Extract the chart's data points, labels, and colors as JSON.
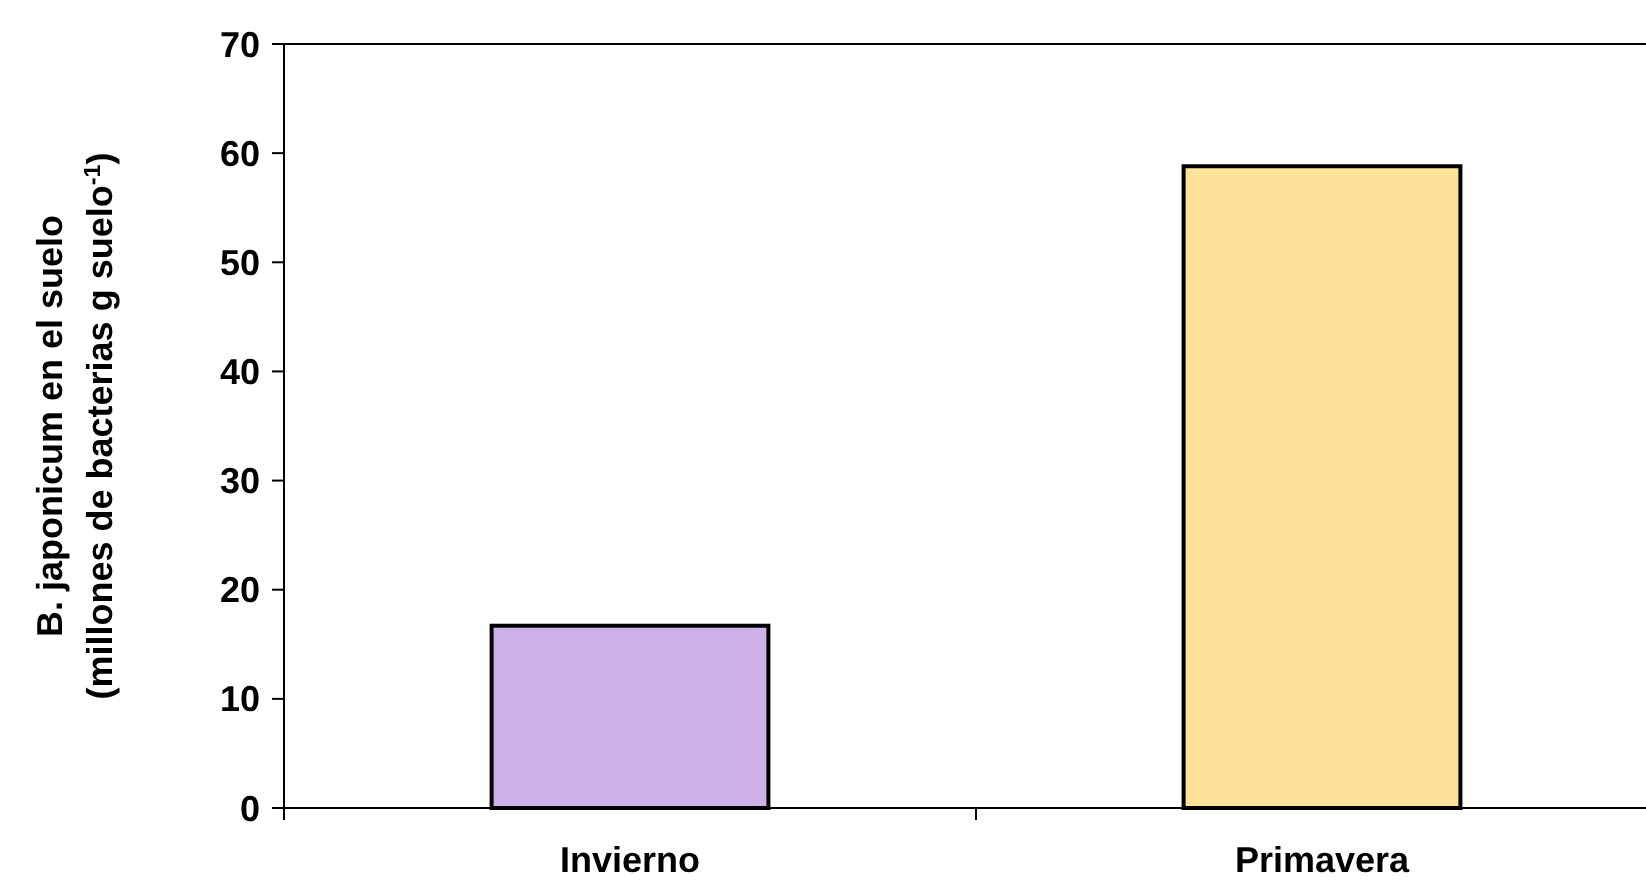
{
  "chart_data": {
    "type": "bar",
    "ylabel": "B. japonicum en el suelo\n(millones de bacterias g suelo$^{-1}$)",
    "categories": [
      "Invierno",
      "Primavera"
    ],
    "values": [
      16.7,
      58.8
    ],
    "colors": [
      "#cfb0e8",
      "#fde39a"
    ],
    "ylim": [
      0,
      70
    ],
    "yticks": [
      0,
      10,
      20,
      30,
      40,
      50,
      60,
      70
    ],
    "grid": false
  }
}
